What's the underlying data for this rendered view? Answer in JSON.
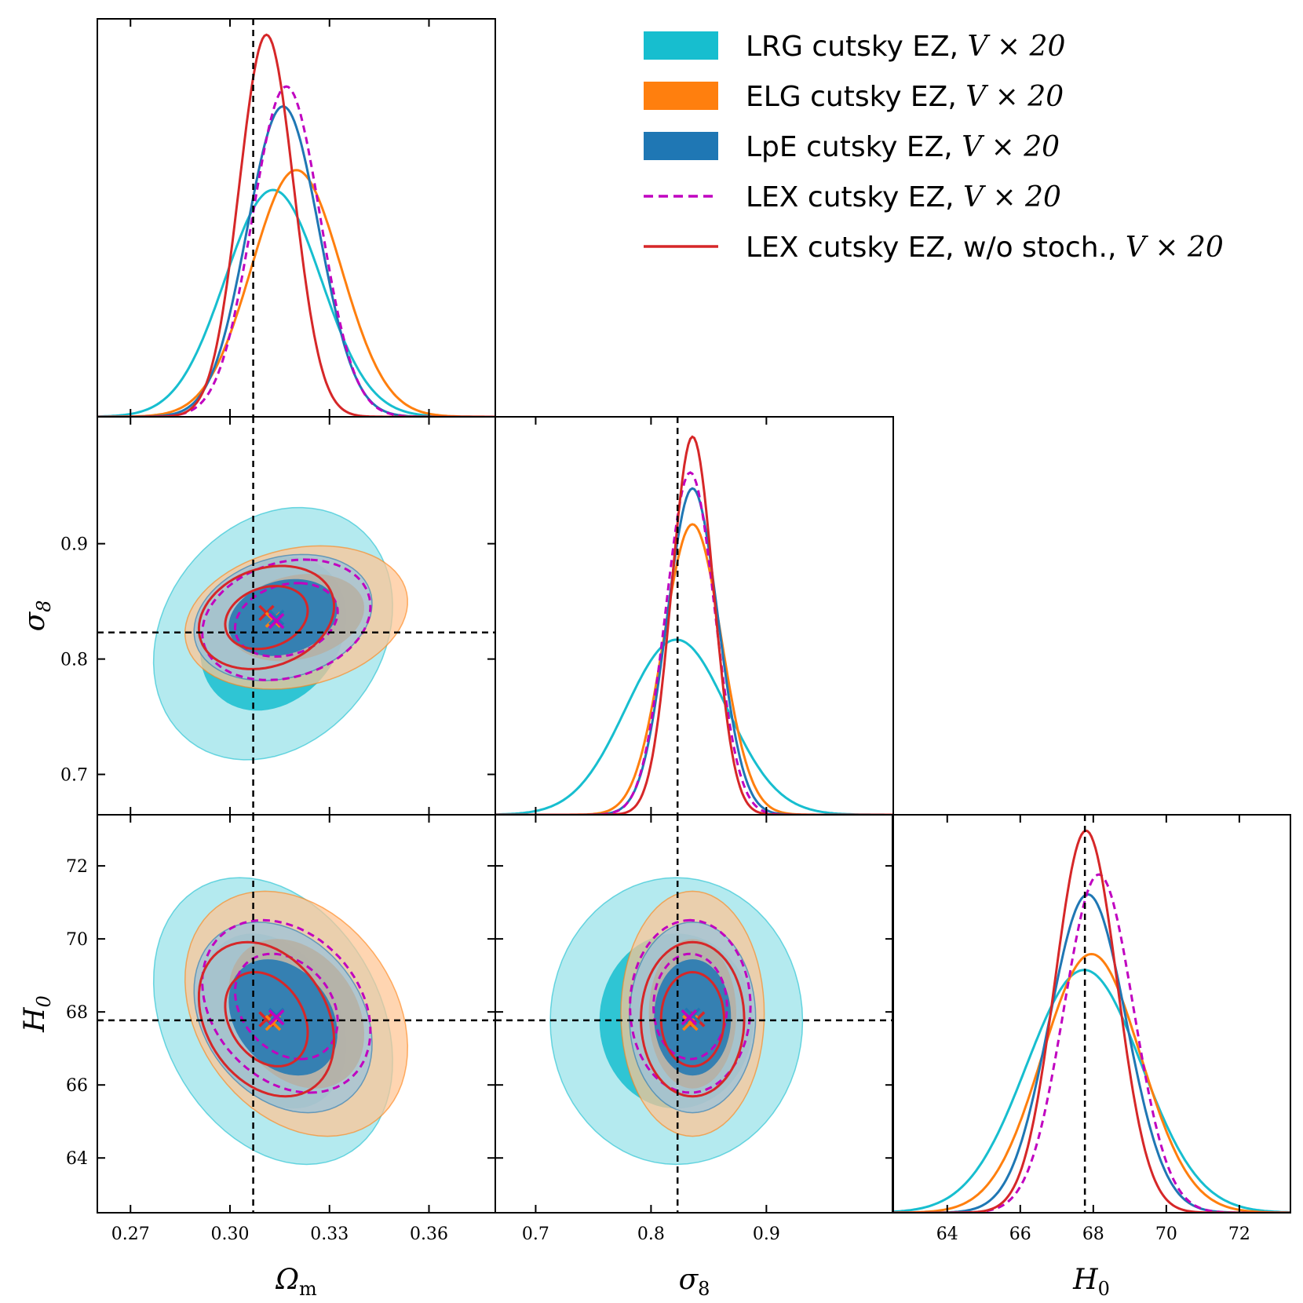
{
  "chart_data": {
    "type": "triangle-corner",
    "parameters": [
      {
        "key": "Om",
        "label": "Ω_m",
        "symbol": "Ω",
        "subscript": "m",
        "range": [
          0.26,
          0.38
        ],
        "ticks": [
          0.27,
          0.3,
          0.33,
          0.36
        ],
        "tick_labels": [
          "0.27",
          "0.30",
          "0.33",
          "0.36"
        ],
        "truth": 0.307
      },
      {
        "key": "s8",
        "label": "σ_8",
        "symbol": "σ",
        "subscript": "8",
        "range": [
          0.665,
          1.01
        ],
        "ticks": [
          0.7,
          0.8,
          0.9
        ],
        "tick_labels": [
          "0.7",
          "0.8",
          "0.9"
        ],
        "truth": 0.823
      },
      {
        "key": "H0",
        "label": "H_0",
        "symbol": "H",
        "subscript": "0",
        "range": [
          62.5,
          73.4
        ],
        "ticks": [
          64,
          66,
          68,
          70,
          72
        ],
        "tick_labels": [
          "64",
          "66",
          "68",
          "70",
          "72"
        ],
        "truth": 67.77
      }
    ],
    "series": [
      {
        "name": "LRG cutsky EZ, ",
        "math": "V × 20",
        "color": "#17becf",
        "fill": true,
        "style": "filled",
        "mean": {
          "Om": 0.313,
          "s8": 0.822,
          "H0": 67.75
        },
        "sigma": {
          "Om": 0.0145,
          "s8": 0.044,
          "H0": 1.58
        },
        "peak": {
          "Om": 0.57,
          "s8": 0.44,
          "H0": 0.61
        }
      },
      {
        "name": "ELG cutsky EZ, ",
        "math": "V × 20",
        "color": "#ff7f0e",
        "fill": true,
        "style": "filled",
        "mean": {
          "Om": 0.32,
          "s8": 0.836,
          "H0": 67.95
        },
        "sigma": {
          "Om": 0.0135,
          "s8": 0.025,
          "H0": 1.35
        },
        "peak": {
          "Om": 0.62,
          "s8": 0.73,
          "H0": 0.65
        }
      },
      {
        "name": "LpE cutsky EZ, ",
        "math": "V × 20",
        "color": "#1f77b4",
        "fill": true,
        "style": "filled",
        "mean": {
          "Om": 0.316,
          "s8": 0.836,
          "H0": 67.85
        },
        "sigma": {
          "Om": 0.0108,
          "s8": 0.022,
          "H0": 1.05
        },
        "peak": {
          "Om": 0.78,
          "s8": 0.82,
          "H0": 0.8
        }
      },
      {
        "name": "LEX cutsky EZ, ",
        "math": "V × 20",
        "color": "#c000c0",
        "fill": false,
        "style": "dashed",
        "mean": {
          "Om": 0.317,
          "s8": 0.834,
          "H0": 68.15
        },
        "sigma": {
          "Om": 0.0102,
          "s8": 0.021,
          "H0": 0.95
        },
        "peak": {
          "Om": 0.83,
          "s8": 0.86,
          "H0": 0.85
        }
      },
      {
        "name": "LEX cutsky EZ, w/o stoch., ",
        "math": "V × 20",
        "color": "#d62728",
        "fill": false,
        "style": "solid",
        "mean": {
          "Om": 0.311,
          "s8": 0.836,
          "H0": 67.8
        },
        "sigma": {
          "Om": 0.0082,
          "s8": 0.018,
          "H0": 0.85
        },
        "peak": {
          "Om": 0.96,
          "s8": 0.95,
          "H0": 0.96
        }
      }
    ],
    "markers": [
      {
        "color": "#d62728",
        "pos": {
          "Om": 0.311,
          "s8": 0.84,
          "H0": 67.8
        }
      },
      {
        "color": "#ff7f0e",
        "pos": {
          "Om": 0.313,
          "s8": 0.834,
          "H0": 67.7
        }
      },
      {
        "color": "#1f77b4",
        "pos": {
          "Om": 0.314,
          "s8": 0.836,
          "H0": 67.9
        }
      },
      {
        "color": "#c000c0",
        "pos": {
          "Om": 0.314,
          "s8": 0.833,
          "H0": 67.85
        }
      }
    ],
    "legend_position": "top-right",
    "truth_lines": "black dashed"
  }
}
